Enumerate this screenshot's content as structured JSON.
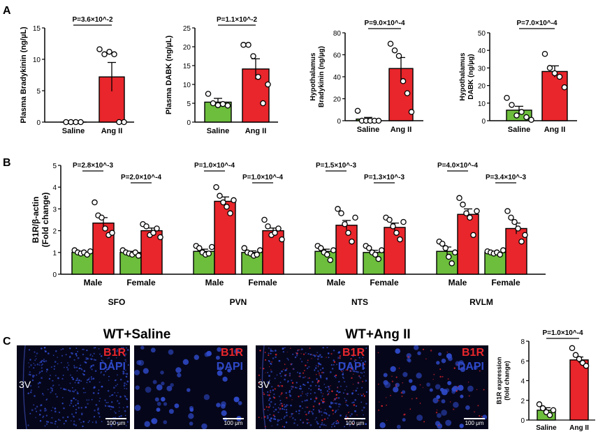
{
  "colors": {
    "saline": "#6dbe3c",
    "ang": "#e8262b",
    "micro_bg": "#06061a",
    "dapi": "#2e49c8",
    "b1r": "#e8262b"
  },
  "panel_labels": {
    "a": "A",
    "b": "B",
    "c": "C"
  },
  "chart_data": [
    {
      "id": "a1",
      "type": "bar",
      "panel": "A",
      "ylabel": "Plasma Bradykinin (ng/µL)",
      "categories": [
        "Saline",
        "Ang II"
      ],
      "ylim": [
        0,
        15
      ],
      "yticks": [
        0,
        5,
        10,
        15
      ],
      "p_value": "P=3.6×10^-2",
      "series": [
        {
          "name": "Saline",
          "mean": 0,
          "sem": 0,
          "points": [
            0,
            0,
            0,
            0
          ]
        },
        {
          "name": "Ang II",
          "mean": 7.2,
          "sem": 2.3,
          "points": [
            11.6,
            10.8,
            11.2,
            10.8,
            0,
            0
          ]
        }
      ]
    },
    {
      "id": "a2",
      "type": "bar",
      "panel": "A",
      "ylabel": "Plasma DABK (ng/µL)",
      "categories": [
        "Saline",
        "Ang II"
      ],
      "ylim": [
        0,
        25
      ],
      "yticks": [
        0,
        5,
        10,
        15,
        20,
        25
      ],
      "p_value": "P=1.1×10^-2",
      "series": [
        {
          "name": "Saline",
          "mean": 5.3,
          "sem": 1.0,
          "points": [
            7.5,
            5.0,
            4.5,
            4.8,
            4.4
          ]
        },
        {
          "name": "Ang II",
          "mean": 14.1,
          "sem": 2.7,
          "points": [
            20.5,
            20.5,
            17.5,
            12.0,
            5.0,
            10.0
          ]
        }
      ]
    },
    {
      "id": "a3",
      "type": "bar",
      "panel": "A",
      "ylabel": [
        "Hypothalamus",
        "Bradykinin (ng/µg)"
      ],
      "categories": [
        "Saline",
        "Ang II"
      ],
      "ylim": [
        0,
        80
      ],
      "yticks": [
        0,
        20,
        40,
        60,
        80
      ],
      "p_value": "P=9.0×10^-4",
      "series": [
        {
          "name": "Saline",
          "mean": 1.5,
          "sem": 1.5,
          "points": [
            9,
            0,
            0,
            0,
            0,
            0
          ]
        },
        {
          "name": "Ang II",
          "mean": 47.5,
          "sem": 10,
          "points": [
            70,
            64,
            59,
            36,
            25,
            8
          ]
        }
      ]
    },
    {
      "id": "a4",
      "type": "bar",
      "panel": "A",
      "ylabel": [
        "Hypothalamus",
        "DABK (ng/µg)"
      ],
      "categories": [
        "Saline",
        "Ang II"
      ],
      "ylim": [
        0,
        50
      ],
      "yticks": [
        0,
        10,
        20,
        30,
        40,
        50
      ],
      "p_value": "P=7.0×10^-4",
      "series": [
        {
          "name": "Saline",
          "mean": 6.0,
          "sem": 2.2,
          "points": [
            13,
            9,
            3,
            5,
            2,
            0.5
          ]
        },
        {
          "name": "Ang II",
          "mean": 28.0,
          "sem": 3.2,
          "points": [
            38,
            30,
            27,
            25,
            19
          ]
        }
      ]
    },
    {
      "id": "b",
      "type": "bar",
      "panel": "B",
      "ylabel": [
        "B1R/β-actin",
        "(Fold change)"
      ],
      "ylim": [
        0,
        5
      ],
      "yticks": [
        0,
        1,
        2,
        3,
        4,
        5
      ],
      "regions": [
        "SFO",
        "PVN",
        "NTS",
        "RVLM"
      ],
      "sexes": [
        "Male",
        "Female"
      ],
      "series_names": [
        "Saline",
        "Ang II"
      ],
      "groups": [
        {
          "region": "SFO",
          "sex": "Male",
          "p_value": "P=2.8×10^-3",
          "saline": {
            "mean": 1.0,
            "sem": 0.05,
            "points": [
              1.1,
              1.0,
              0.95,
              1.0,
              0.9,
              1.05
            ]
          },
          "ang": {
            "mean": 2.35,
            "sem": 0.25,
            "points": [
              3.3,
              2.7,
              2.6,
              2.1,
              1.8,
              1.9
            ]
          }
        },
        {
          "region": "SFO",
          "sex": "Female",
          "p_value": "P=2.0×10^-4",
          "saline": {
            "mean": 1.0,
            "sem": 0.05,
            "points": [
              1.1,
              1.0,
              0.95,
              0.9,
              1.0,
              0.85
            ]
          },
          "ang": {
            "mean": 2.0,
            "sem": 0.12,
            "points": [
              2.3,
              2.2,
              1.8,
              1.9,
              2.1,
              1.7
            ]
          }
        },
        {
          "region": "PVN",
          "sex": "Male",
          "p_value": "P=1.0×10^-4",
          "saline": {
            "mean": 1.05,
            "sem": 0.1,
            "points": [
              1.3,
              1.2,
              1.0,
              0.9,
              0.95,
              1.25
            ]
          },
          "ang": {
            "mean": 3.35,
            "sem": 0.2,
            "points": [
              4.0,
              3.6,
              3.3,
              3.1,
              2.8,
              3.4
            ]
          }
        },
        {
          "region": "PVN",
          "sex": "Female",
          "p_value": "P=1.0×10^-4",
          "saline": {
            "mean": 1.0,
            "sem": 0.07,
            "points": [
              1.2,
              1.0,
              0.95,
              0.85,
              0.9,
              1.1
            ]
          },
          "ang": {
            "mean": 2.0,
            "sem": 0.12,
            "points": [
              2.5,
              2.2,
              1.8,
              1.9,
              2.1,
              1.6
            ]
          }
        },
        {
          "region": "NTS",
          "sex": "Male",
          "p_value": "P=1.5×10^-3",
          "saline": {
            "mean": 1.05,
            "sem": 0.1,
            "points": [
              1.3,
              1.2,
              1.0,
              0.9,
              0.65,
              1.1
            ]
          },
          "ang": {
            "mean": 2.25,
            "sem": 0.22,
            "points": [
              3.0,
              2.8,
              2.3,
              1.9,
              1.5,
              2.6
            ]
          }
        },
        {
          "region": "NTS",
          "sex": "Female",
          "p_value": "P=1.3×10^-3",
          "saline": {
            "mean": 1.0,
            "sem": 0.1,
            "points": [
              1.3,
              1.2,
              1.0,
              0.9,
              0.7,
              1.1
            ]
          },
          "ang": {
            "mean": 2.15,
            "sem": 0.2,
            "points": [
              2.6,
              2.5,
              2.2,
              1.9,
              1.6,
              2.4
            ]
          }
        },
        {
          "region": "RVLM",
          "sex": "Male",
          "p_value": "P=4.0×10^-4",
          "saline": {
            "mean": 1.05,
            "sem": 0.2,
            "points": [
              1.5,
              1.4,
              1.2,
              0.8,
              0.5,
              1.0
            ]
          },
          "ang": {
            "mean": 2.75,
            "sem": 0.25,
            "points": [
              3.5,
              3.2,
              2.8,
              2.6,
              1.8,
              2.9
            ]
          }
        },
        {
          "region": "RVLM",
          "sex": "Female",
          "p_value": "P=3.4×10^-3",
          "saline": {
            "mean": 1.0,
            "sem": 0.05,
            "points": [
              1.05,
              1.0,
              0.95,
              1.0,
              0.9,
              1.1
            ]
          },
          "ang": {
            "mean": 2.1,
            "sem": 0.25,
            "points": [
              2.9,
              2.6,
              2.4,
              2.1,
              1.5,
              1.8
            ]
          }
        }
      ]
    },
    {
      "id": "c",
      "type": "bar",
      "panel": "C",
      "ylabel": [
        "B1R expression",
        "(fold change)"
      ],
      "categories": [
        "Saline",
        "Ang II"
      ],
      "ylim": [
        0,
        8
      ],
      "yticks": [
        0,
        2,
        4,
        6,
        8
      ],
      "p_value": "P=1.0×10^-4",
      "series": [
        {
          "name": "Saline",
          "mean": 1.0,
          "sem": 0.25,
          "points": [
            1.6,
            1.2,
            0.8,
            0.5,
            1.0
          ]
        },
        {
          "name": "Ang II",
          "mean": 6.1,
          "sem": 0.3,
          "points": [
            7.3,
            6.6,
            6.2,
            5.8,
            5.5
          ]
        }
      ]
    }
  ],
  "micrographs": {
    "titles": {
      "saline": "WT+Saline",
      "ang": "WT+Ang II"
    },
    "channel_b1r": "B1R",
    "channel_dapi": "DAPI",
    "ventricle": "3V",
    "scale_bar": "100 μm"
  }
}
